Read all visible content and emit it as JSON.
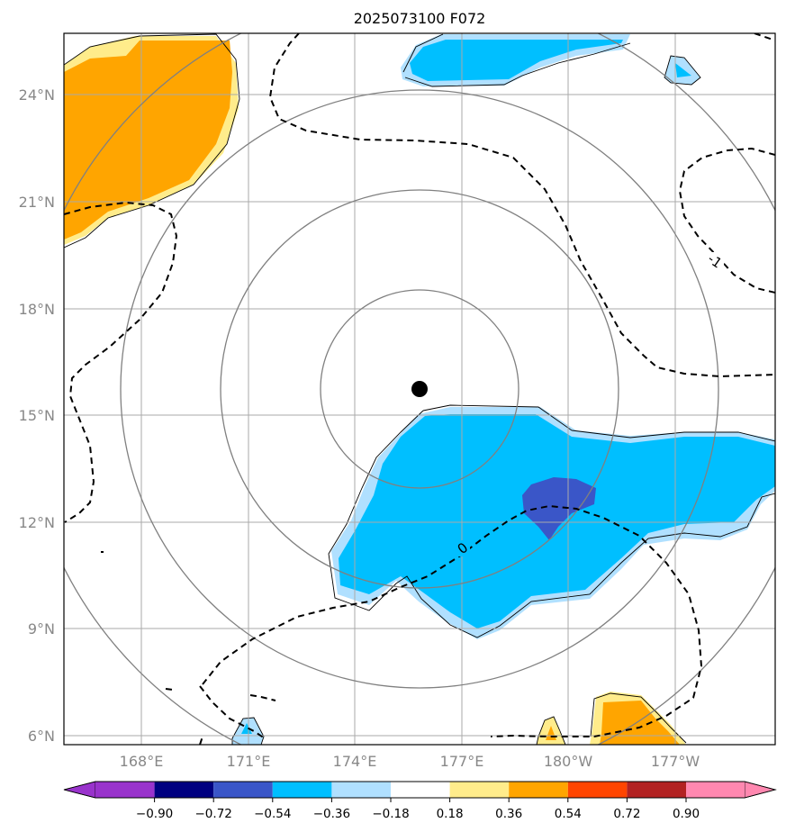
{
  "title": "2025073100 F072",
  "lat_labels": [
    "24°N",
    "21°N",
    "18°N",
    "15°N",
    "12°N",
    "9°N",
    "6°N"
  ],
  "lon_labels": [
    "168°E",
    "171°E",
    "174°E",
    "177°E",
    "180°W",
    "177°W"
  ],
  "contour_labels": [
    "0",
    "-1"
  ],
  "colorbar": {
    "ticks": [
      "−0.90",
      "−0.72",
      "−0.54",
      "−0.36",
      "−0.18",
      "0.18",
      "0.36",
      "0.54",
      "0.72",
      "0.90"
    ],
    "colors": [
      "#9933cc",
      "#000080",
      "#3a56c8",
      "#00bfff",
      "#b0e0ff",
      "#ffffff",
      "#ffec8b",
      "#ffa500",
      "#ff4500",
      "#b22222",
      "#ff88b0"
    ]
  },
  "center_marker": "storm-center-dot"
}
